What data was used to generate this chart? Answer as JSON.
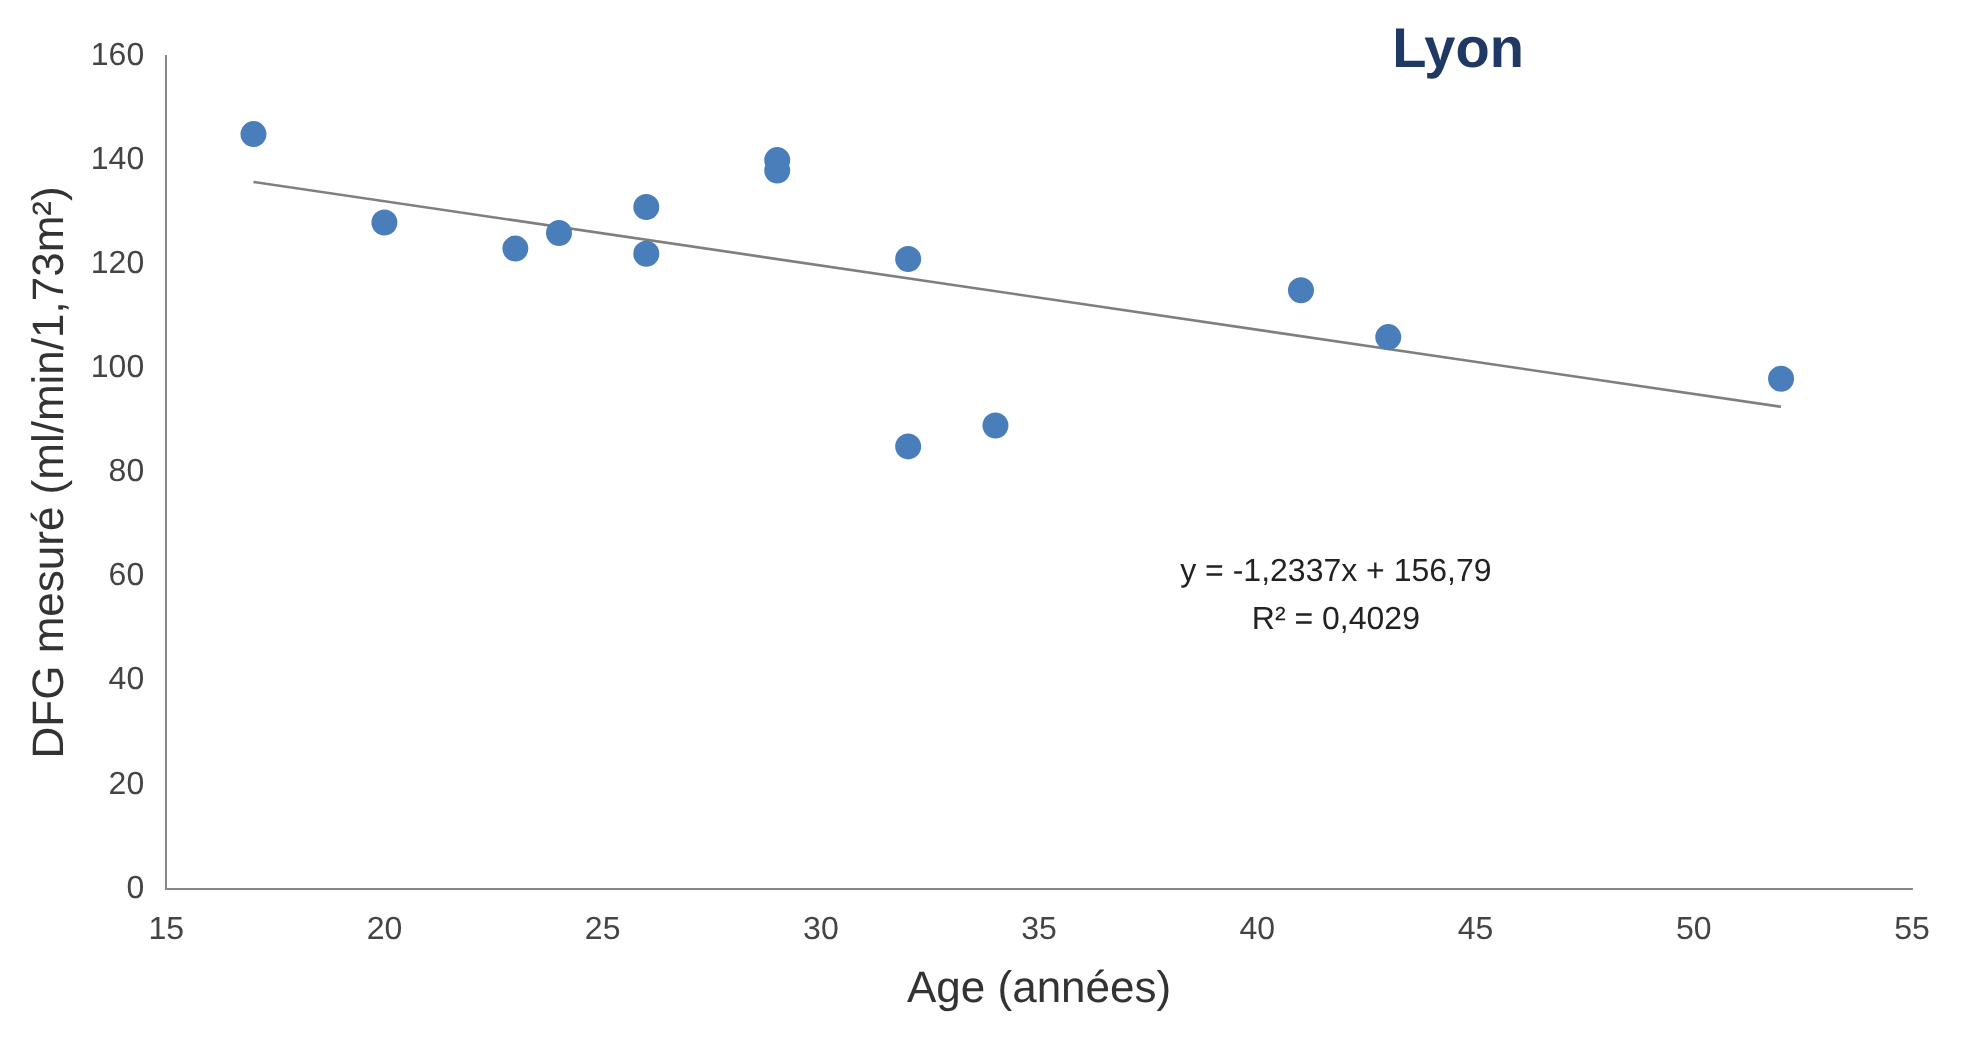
{
  "chart_data": {
    "type": "scatter",
    "title": "Lyon",
    "xlabel": "Age (années)",
    "ylabel": "DFG mesuré (ml/min/1,73m²)",
    "x": [
      17,
      20,
      23,
      24,
      26,
      26,
      29,
      29,
      32,
      32,
      34,
      41,
      43,
      52
    ],
    "series": [
      {
        "marker": "circle",
        "color": "#4a7ebb",
        "values": [
          145,
          128,
          123,
          126,
          131,
          122,
          140,
          138,
          121,
          85,
          89,
          115,
          106,
          98
        ]
      },
      {
        "type": "line",
        "marker": "none",
        "color": "#7f7f7f",
        "x": [
          17,
          52
        ],
        "values": [
          135.8,
          92.6
        ]
      }
    ],
    "xlim": [
      15,
      55
    ],
    "xticks": [
      15,
      20,
      25,
      30,
      35,
      40,
      45,
      50,
      55
    ],
    "ylim": [
      0,
      160
    ],
    "yticks": [
      0,
      20,
      40,
      60,
      80,
      100,
      120,
      140,
      160
    ],
    "annotations": [
      "y = -1,2337x + 156,79",
      "R² = 0,4029"
    ],
    "grid": false,
    "legend": false
  }
}
